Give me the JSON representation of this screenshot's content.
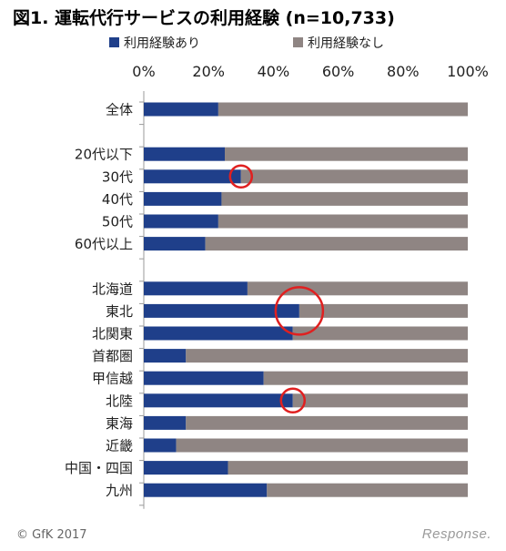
{
  "chart_data": {
    "type": "bar",
    "orientation": "horizontal",
    "stacked": true,
    "title": "図1. 運転代行サービスの利用経験 (n=10,733)",
    "xlim": [
      0,
      100
    ],
    "xticks": [
      "0%",
      "20%",
      "40%",
      "60%",
      "80%",
      "100%"
    ],
    "series": [
      {
        "name": "利用経験あり",
        "color": "#1f3f8a"
      },
      {
        "name": "利用経験なし",
        "color": "#8f8583"
      }
    ],
    "categories": [
      {
        "label": "全体",
        "value": 23
      },
      null,
      {
        "label": "20代以下",
        "value": 25
      },
      {
        "label": "30代",
        "value": 30,
        "circled": true
      },
      {
        "label": "40代",
        "value": 24
      },
      {
        "label": "50代",
        "value": 23
      },
      {
        "label": "60代以上",
        "value": 19
      },
      null,
      {
        "label": "北海道",
        "value": 32
      },
      {
        "label": "東北",
        "value": 48,
        "circled": true
      },
      {
        "label": "北関東",
        "value": 46
      },
      {
        "label": "首都圏",
        "value": 13
      },
      {
        "label": "甲信越",
        "value": 37
      },
      {
        "label": "北陸",
        "value": 46,
        "circled": true
      },
      {
        "label": "東海",
        "value": 13
      },
      {
        "label": "近畿",
        "value": 10
      },
      {
        "label": "中国・四国",
        "value": 26
      },
      {
        "label": "九州",
        "value": 38
      }
    ],
    "highlight_color": "#e02020",
    "legend_position": "top"
  },
  "footer": {
    "copyright": "© GfK 2017",
    "brand": "Response."
  }
}
